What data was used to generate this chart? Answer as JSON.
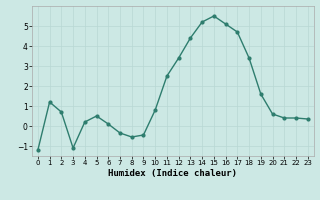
{
  "x": [
    0,
    1,
    2,
    3,
    4,
    5,
    6,
    7,
    8,
    9,
    10,
    11,
    12,
    13,
    14,
    15,
    16,
    17,
    18,
    19,
    20,
    21,
    22,
    23
  ],
  "y": [
    -1.2,
    1.2,
    0.7,
    -1.1,
    0.2,
    0.5,
    0.1,
    -0.35,
    -0.55,
    -0.45,
    0.8,
    2.5,
    3.4,
    4.4,
    5.2,
    5.5,
    5.1,
    4.7,
    3.4,
    1.6,
    0.6,
    0.4,
    0.4,
    0.35
  ],
  "xlabel": "Humidex (Indice chaleur)",
  "xlim": [
    -0.5,
    23.5
  ],
  "ylim": [
    -1.5,
    6.0
  ],
  "yticks": [
    -1,
    0,
    1,
    2,
    3,
    4,
    5
  ],
  "xticks": [
    0,
    1,
    2,
    3,
    4,
    5,
    6,
    7,
    8,
    9,
    10,
    11,
    12,
    13,
    14,
    15,
    16,
    17,
    18,
    19,
    20,
    21,
    22,
    23
  ],
  "line_color": "#2e7d6e",
  "marker_size": 2.0,
  "line_width": 1.0,
  "bg_color": "#cce8e4",
  "grid_color": "#b8d8d4",
  "xlabel_fontsize": 6.5,
  "tick_fontsize_x": 5.0,
  "tick_fontsize_y": 5.5
}
